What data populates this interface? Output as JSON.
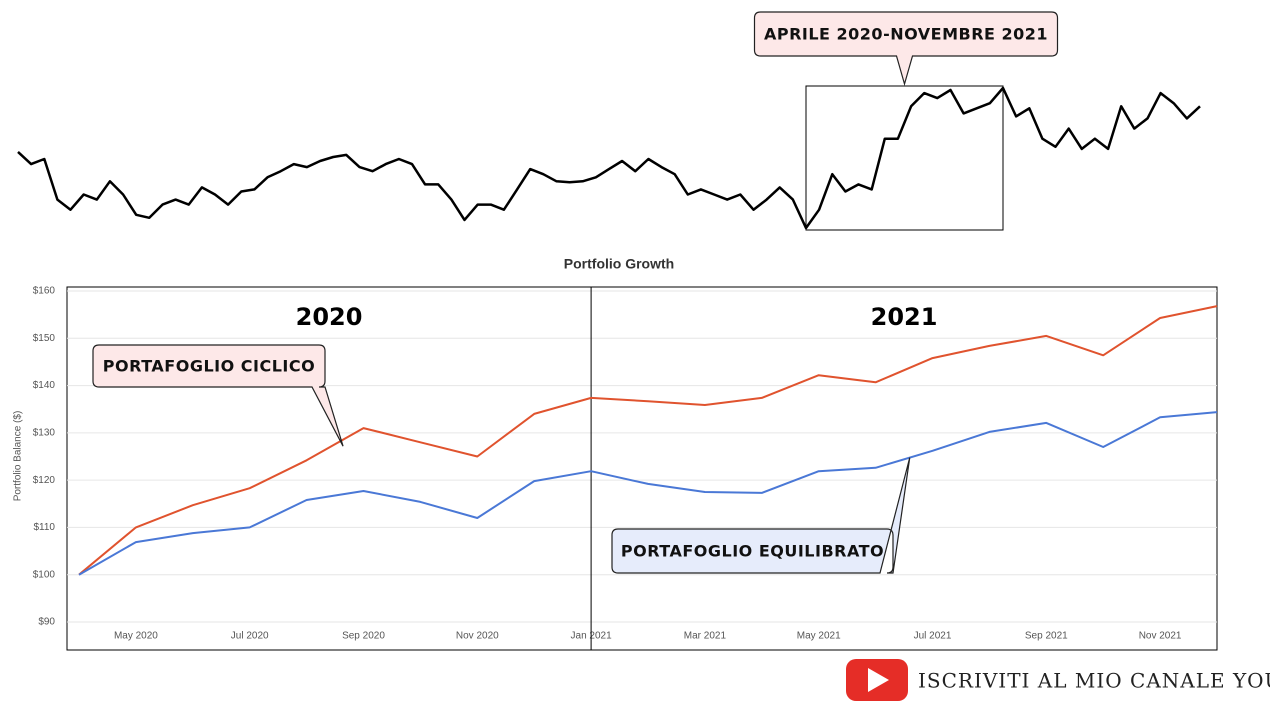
{
  "chart_data": [
    {
      "type": "line",
      "color": "#000000",
      "annotation": "APRILE 2020-NOVEMBRE 2021",
      "highlight": [
        60,
        75
      ],
      "ylim": [
        10,
        150
      ],
      "values": [
        87,
        75,
        80,
        40,
        30,
        45,
        40,
        58,
        45,
        25,
        22,
        35,
        40,
        35,
        52,
        45,
        35,
        48,
        50,
        62,
        68,
        75,
        72,
        78,
        82,
        84,
        72,
        68,
        75,
        80,
        75,
        55,
        55,
        40,
        20,
        35,
        35,
        30,
        50,
        70,
        65,
        58,
        57,
        58,
        62,
        70,
        78,
        68,
        80,
        72,
        65,
        45,
        50,
        45,
        40,
        45,
        30,
        40,
        52,
        40,
        12,
        30,
        65,
        48,
        55,
        50,
        100,
        100,
        132,
        145,
        140,
        148,
        125,
        130,
        135,
        150,
        122,
        130,
        100,
        92,
        110,
        90,
        100,
        90,
        132,
        110,
        120,
        145,
        135,
        120,
        132
      ]
    },
    {
      "type": "line",
      "title": "Portfolio Growth",
      "y_label": "Portfolio Balance ($)",
      "year_labels": [
        "2020",
        "2021"
      ],
      "divider_index": 9,
      "categories": [
        null,
        "May 2020",
        null,
        "Jul 2020",
        null,
        "Sep 2020",
        null,
        "Nov 2020",
        null,
        "Jan 2021",
        null,
        "Mar 2021",
        null,
        "May 2021",
        null,
        "Jul 2021",
        null,
        "Sep 2021",
        null,
        "Nov 2021",
        null
      ],
      "ylim": [
        90,
        160
      ],
      "yticks": [
        {
          "value": 90,
          "label": "$90"
        },
        {
          "value": 100,
          "label": "$100"
        },
        {
          "value": 110,
          "label": "$110"
        },
        {
          "value": 120,
          "label": "$120"
        },
        {
          "value": 130,
          "label": "$130"
        },
        {
          "value": 140,
          "label": "$140"
        },
        {
          "value": 150,
          "label": "$150"
        },
        {
          "value": 160,
          "label": "$160"
        }
      ],
      "grid": true,
      "series": [
        {
          "name": "PORTAFOGLIO CICLICO",
          "color": "#e0532e",
          "values": [
            100,
            110,
            114.7,
            118.3,
            124.2,
            131,
            128,
            125,
            134,
            137.4,
            136.7,
            135.9,
            137.4,
            142.2,
            140.7,
            145.8,
            148.4,
            150.5,
            146.4,
            154.3,
            156.8
          ]
        },
        {
          "name": "PORTAFOGLIO EQUILIBRATO",
          "color": "#4a78d6",
          "values": [
            100,
            106.9,
            108.8,
            110,
            115.8,
            117.7,
            115.4,
            112,
            119.8,
            121.9,
            119.2,
            117.5,
            117.3,
            121.9,
            122.6,
            126.2,
            130.2,
            132.1,
            127,
            133.3,
            134.4
          ]
        }
      ]
    }
  ],
  "footer": {
    "text": "ISCRIVITI AL MIO CANALE YOUTUBE"
  }
}
